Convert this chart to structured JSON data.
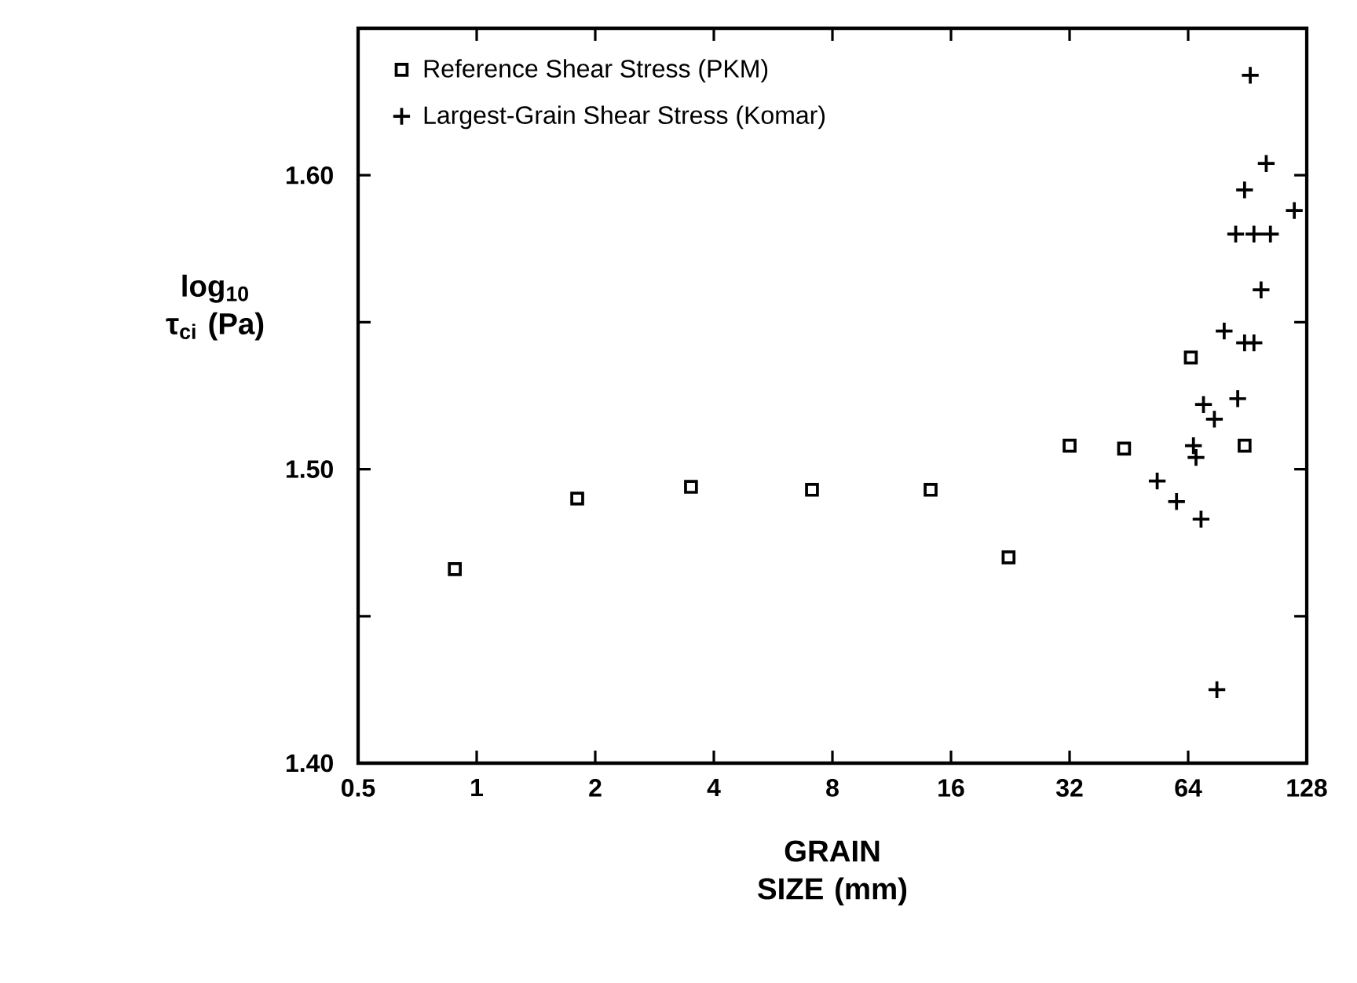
{
  "chart_data": {
    "type": "scatter",
    "xlabel": "GRAIN SIZE (mm)",
    "ylabel": "log$_{10}$ τ$_{ci}$ (Pa)",
    "log": "x",
    "xlim": [
      0.5,
      128
    ],
    "xticks": [
      0.5,
      1,
      2,
      4,
      8,
      16,
      32,
      64,
      128
    ],
    "ylim": [
      1.4,
      1.65
    ],
    "yticks": [
      {
        "value": 1.4,
        "label": "1.40"
      },
      {
        "value": 1.45,
        "label": null
      },
      {
        "value": 1.5,
        "label": "1.50"
      },
      {
        "value": 1.55,
        "label": null
      },
      {
        "value": 1.6,
        "label": "1.60"
      }
    ],
    "legend": "top left",
    "grid": false,
    "line_style": "none",
    "series": [
      {
        "name": "Reference Shear Stress  (PKM)",
        "color": "#000000",
        "marker": "square",
        "x": [
          0.88,
          1.8,
          3.5,
          7.1,
          14.2,
          22.4,
          32,
          44,
          65,
          89
        ],
        "values": [
          1.466,
          1.49,
          1.494,
          1.493,
          1.493,
          1.47,
          1.508,
          1.507,
          1.538,
          1.508
        ]
      },
      {
        "name": "Largest-Grain Shear Stress (Komar)",
        "color": "#000000",
        "marker": "cross",
        "x": [
          92,
          101,
          89,
          119,
          84.5,
          94,
          103.5,
          98,
          79,
          89,
          94,
          85.5,
          70,
          74.6,
          66,
          67,
          53.4,
          59.8,
          69,
          75.7
        ],
        "values": [
          1.634,
          1.604,
          1.595,
          1.588,
          1.58,
          1.58,
          1.58,
          1.561,
          1.547,
          1.543,
          1.543,
          1.524,
          1.522,
          1.517,
          1.508,
          1.504,
          1.496,
          1.489,
          1.483,
          1.425
        ]
      }
    ]
  }
}
